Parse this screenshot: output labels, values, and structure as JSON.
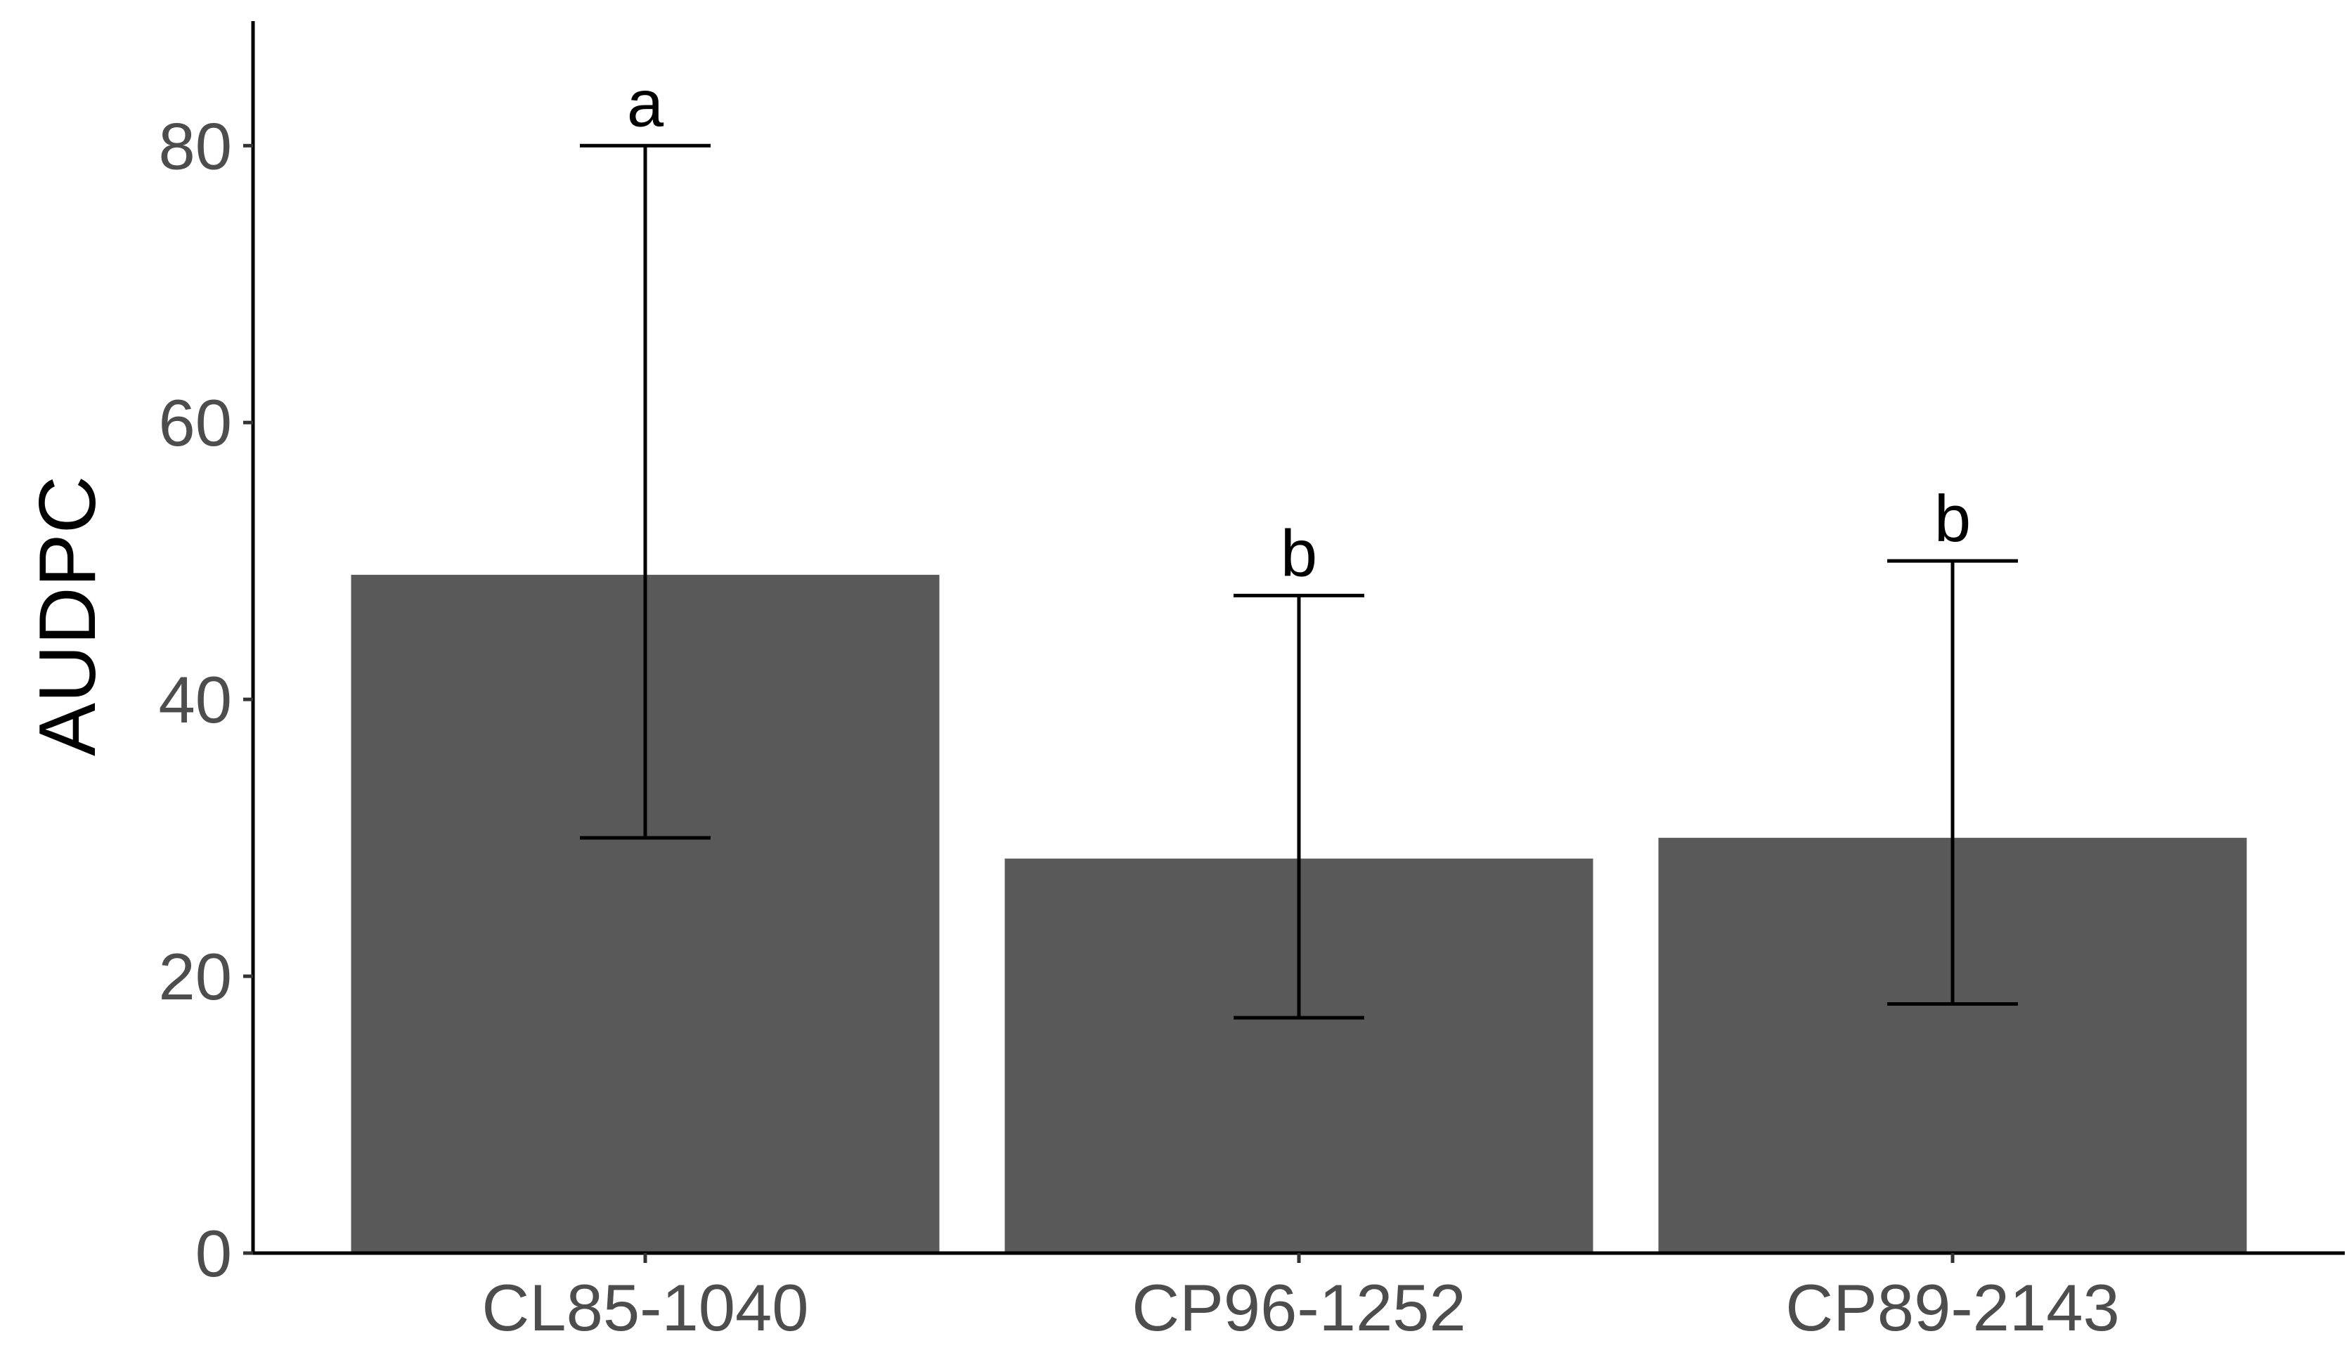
{
  "chart_data": {
    "type": "bar",
    "categories": [
      "CL85-1040",
      "CP96-1252",
      "CP89-2143"
    ],
    "values": [
      49,
      28.5,
      30
    ],
    "error_bars": [
      {
        "lower": 30,
        "upper": 80
      },
      {
        "lower": 17,
        "upper": 47.5
      },
      {
        "lower": 18,
        "upper": 50
      }
    ],
    "significance_letters": [
      "a",
      "b",
      "b"
    ],
    "title": "",
    "xlabel": "",
    "ylabel": "AUDPC",
    "ylim": [
      0,
      89
    ],
    "yticks": [
      0,
      20,
      40,
      60,
      80
    ],
    "ytick_labels": [
      "0",
      "20",
      "40",
      "60",
      "80"
    ],
    "grid": false,
    "legend": "none",
    "colors": {
      "bar": "#595959",
      "error_bar": "#000000",
      "axis": "#000000",
      "tick_label": "#4d4d4d"
    }
  }
}
